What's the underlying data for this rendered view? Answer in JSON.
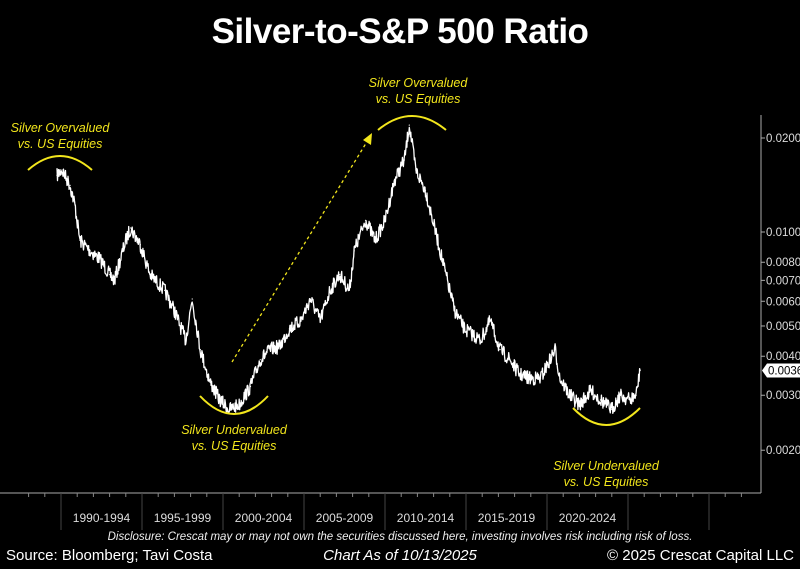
{
  "chart_data": {
    "type": "line",
    "title": "Silver-to-S&P 500 Ratio",
    "y_scale": "log",
    "ylim": [
      0.0017,
      0.024
    ],
    "xlim": [
      1987.3,
      2032.5
    ],
    "y_ticks": [
      "0.0200",
      "0.0100",
      "0.0080",
      "0.0070",
      "0.0060",
      "0.0050",
      "0.0040",
      "0.0030",
      "0.0020"
    ],
    "last_value_label": "0.0036",
    "x_tick_labels": [
      "1990-1994",
      "1995-1999",
      "2000-2004",
      "2005-2009",
      "2010-2014",
      "2015-2019",
      "2020-2024"
    ],
    "grid": false,
    "line_color": "#ffffff",
    "annotation_color": "#f2e61c",
    "series": [
      {
        "x": [
          1989.75,
          1990.06,
          1990.56,
          1990.86,
          1991.17,
          1991.8,
          1992.4,
          1993.0,
          1993.3,
          1994.0,
          1994.3,
          1994.9,
          1995.5,
          1996.4,
          1997.0,
          1997.7,
          1998.1,
          1998.6,
          1999.2,
          1999.8,
          2000.4,
          2001.0,
          2001.7,
          2002.3,
          2002.9,
          2003.5,
          2004.1,
          2004.8,
          2005.4,
          2006.0,
          2006.6,
          2007.2,
          2007.8,
          2008.1,
          2008.8,
          2009.4,
          2010.0,
          2010.6,
          2011.2,
          2011.5,
          2011.9,
          2012.5,
          2013.1,
          2013.7,
          2014.3,
          2014.9,
          2015.9,
          2016.5,
          2017.1,
          2017.7,
          2018.3,
          2018.9,
          2019.6,
          2020.5,
          2020.8,
          2021.4,
          2022.0,
          2022.7,
          2023.3,
          2024.0,
          2024.5,
          2025.1,
          2025.5,
          2025.75
        ],
        "y": [
          0.0152,
          0.0158,
          0.0141,
          0.0122,
          0.0094,
          0.0087,
          0.0082,
          0.0073,
          0.007,
          0.0094,
          0.0103,
          0.0091,
          0.0073,
          0.0065,
          0.0056,
          0.0045,
          0.0061,
          0.0042,
          0.0033,
          0.0029,
          0.0027,
          0.0028,
          0.0032,
          0.0039,
          0.0042,
          0.0043,
          0.0049,
          0.0052,
          0.0061,
          0.0052,
          0.0065,
          0.0073,
          0.0065,
          0.0087,
          0.0109,
          0.0094,
          0.0109,
          0.0147,
          0.017,
          0.022,
          0.0158,
          0.0136,
          0.0101,
          0.0075,
          0.0056,
          0.0049,
          0.0045,
          0.0052,
          0.0042,
          0.0039,
          0.0035,
          0.0034,
          0.0034,
          0.0042,
          0.0034,
          0.003,
          0.0028,
          0.0031,
          0.0029,
          0.0027,
          0.003,
          0.0029,
          0.003,
          0.0036
        ]
      }
    ],
    "annotations": [
      {
        "line1": "Silver Overvalued",
        "line2": "vs. US Equities"
      },
      {
        "line1": "Silver Overvalued",
        "line2": "vs. US Equities"
      },
      {
        "line1": "Silver Undervalued",
        "line2": "vs. US Equities"
      },
      {
        "line1": "Silver Undervalued",
        "line2": "vs. US Equities"
      }
    ]
  },
  "footer": {
    "disclosure": "Disclosure: Crescat may or may not own the securities discussed here, investing involves risk including risk of loss.",
    "source": "Source: Bloomberg; Tavi Costa",
    "as_of": "Chart As of 10/13/2025",
    "copyright": "© 2025 Crescat Capital LLC"
  }
}
